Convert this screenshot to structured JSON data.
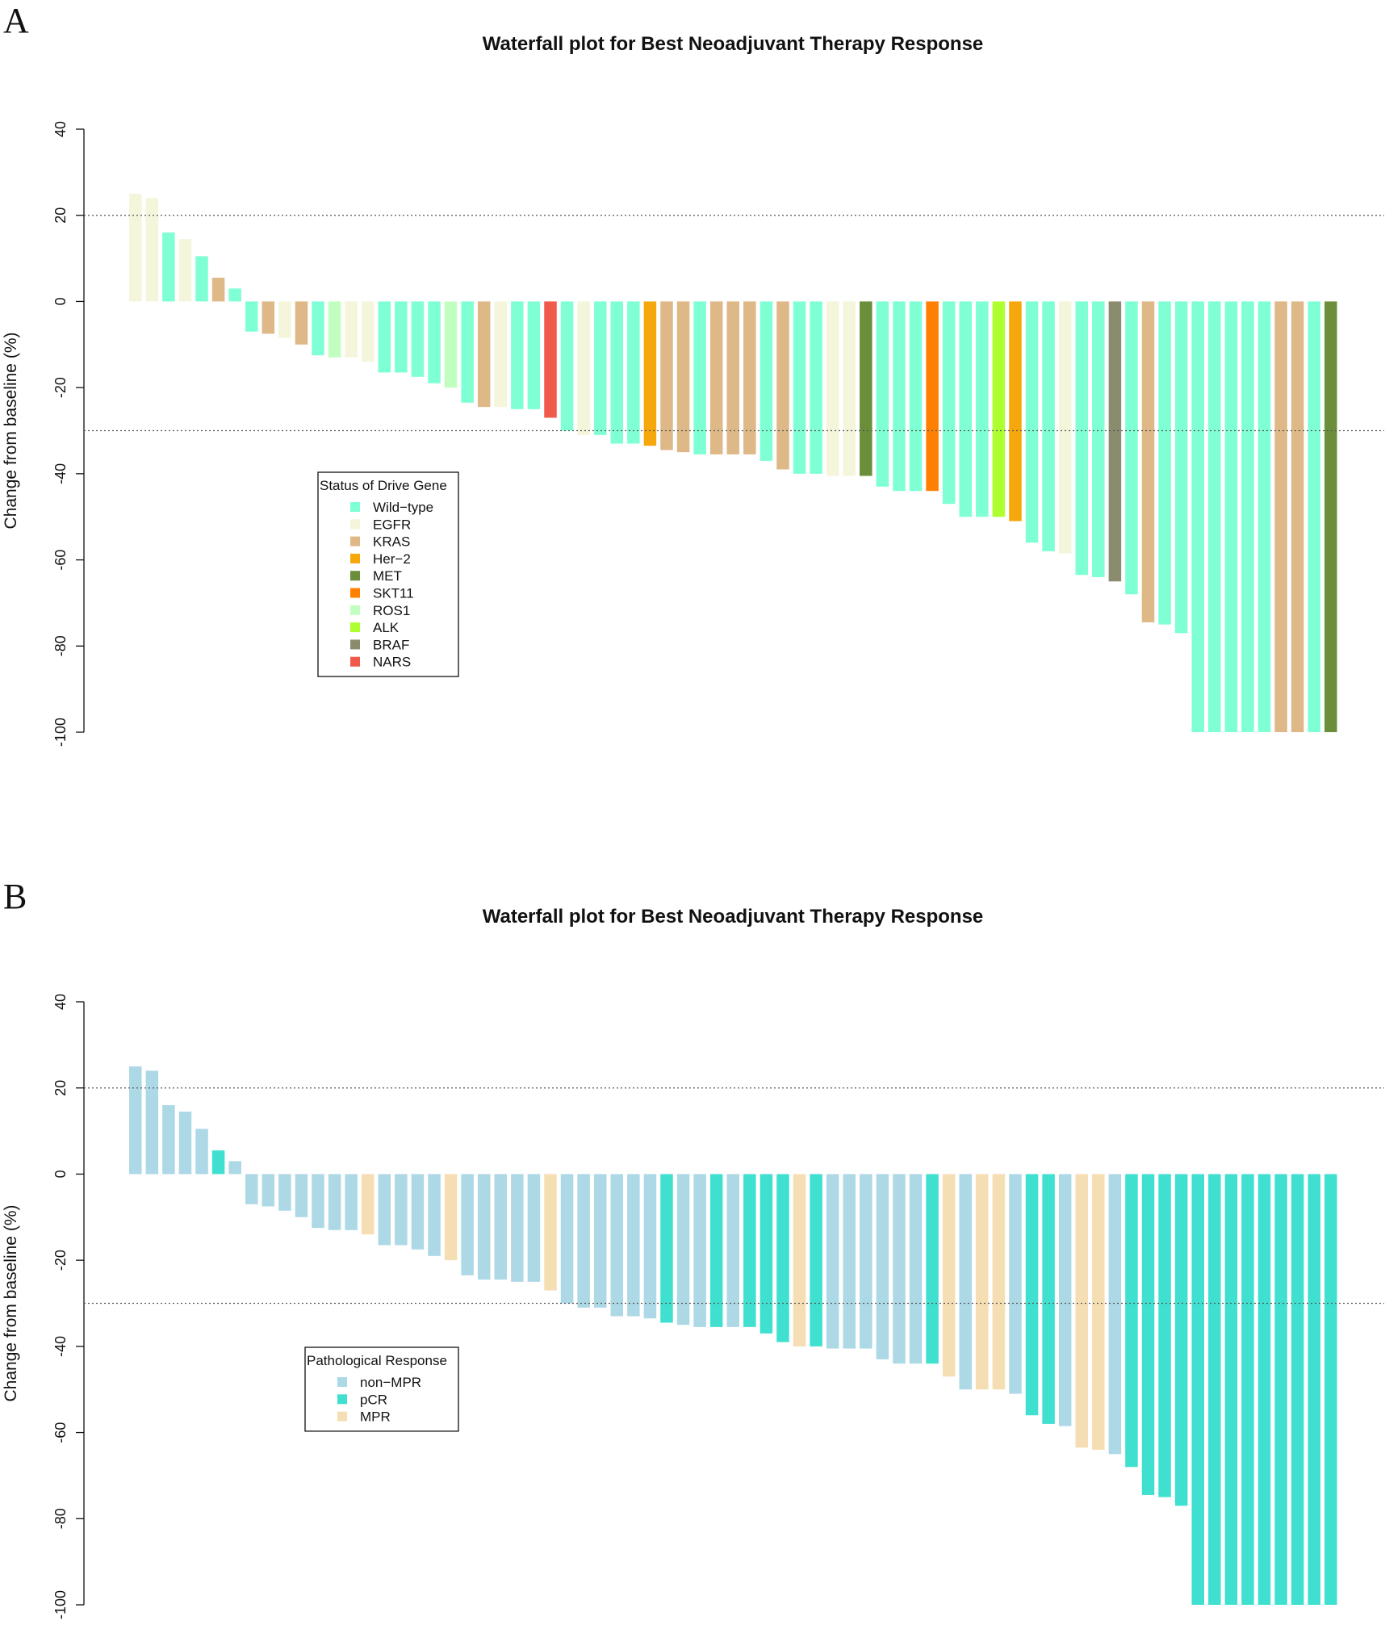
{
  "chart_data": [
    {
      "panel_label": "A",
      "type": "bar",
      "title": "Waterfall plot for Best Neoadjuvant Therapy Response",
      "ylabel": "Change from baseline (%)",
      "xlabel": "",
      "ylim": [
        -100,
        40
      ],
      "yticks": [
        "40",
        "20",
        "0",
        "-20",
        "-40",
        "-60",
        "-80",
        "-100"
      ],
      "yticks_values": [
        40,
        20,
        0,
        -20,
        -40,
        -60,
        -80,
        -100
      ],
      "reference_lines": [
        20,
        -30
      ],
      "legend": {
        "title": "Status of Drive Gene",
        "placement": "center-left",
        "entries": [
          {
            "label": "Wild−type",
            "color": "#7fffd4"
          },
          {
            "label": "EGFR",
            "color": "#f5f5dc"
          },
          {
            "label": "KRAS",
            "color": "#deb887"
          },
          {
            "label": "Her−2",
            "color": "#f5a70c"
          },
          {
            "label": "MET",
            "color": "#6b8e3a"
          },
          {
            "label": "SKT11",
            "color": "#ff7f00"
          },
          {
            "label": "ROS1",
            "color": "#c1ffc1"
          },
          {
            "label": "ALK",
            "color": "#adff2f"
          },
          {
            "label": "BRAF",
            "color": "#8b8b6e"
          },
          {
            "label": "NARS",
            "color": "#f05a4a"
          }
        ]
      },
      "values": [
        25,
        24,
        16,
        14.5,
        10.5,
        5.5,
        3,
        -7,
        -7.5,
        -8.5,
        -10,
        -12.5,
        -13,
        -13,
        -14,
        -16.5,
        -16.5,
        -17.5,
        -19,
        -20,
        -23.5,
        -24.5,
        -24.5,
        -25,
        -25,
        -27,
        -30,
        -31,
        -31,
        -33,
        -33,
        -33.5,
        -34.5,
        -35,
        -35.5,
        -35.5,
        -35.5,
        -35.5,
        -37,
        -39,
        -40,
        -40,
        -40.5,
        -40.5,
        -40.5,
        -43,
        -44,
        -44,
        -44,
        -47,
        -50,
        -50,
        -50,
        -51,
        -56,
        -58,
        -58.5,
        -63.5,
        -64,
        -65,
        -68,
        -74.5,
        -75,
        -77,
        -100,
        -100,
        -100,
        -100,
        -100,
        -100,
        -100,
        -100,
        -100
      ],
      "groups": [
        "EGFR",
        "EGFR",
        "Wild−type",
        "EGFR",
        "Wild−type",
        "KRAS",
        "Wild−type",
        "Wild−type",
        "KRAS",
        "EGFR",
        "KRAS",
        "Wild−type",
        "ROS1",
        "EGFR",
        "EGFR",
        "Wild−type",
        "Wild−type",
        "Wild−type",
        "Wild−type",
        "ROS1",
        "Wild−type",
        "KRAS",
        "EGFR",
        "Wild−type",
        "Wild−type",
        "NARS",
        "Wild−type",
        "EGFR",
        "Wild−type",
        "Wild−type",
        "Wild−type",
        "Her−2",
        "KRAS",
        "KRAS",
        "Wild−type",
        "KRAS",
        "KRAS",
        "KRAS",
        "Wild−type",
        "KRAS",
        "Wild−type",
        "Wild−type",
        "EGFR",
        "EGFR",
        "MET",
        "Wild−type",
        "Wild−type",
        "Wild−type",
        "SKT11",
        "Wild−type",
        "Wild−type",
        "Wild−type",
        "ALK",
        "Her−2",
        "Wild−type",
        "Wild−type",
        "EGFR",
        "Wild−type",
        "Wild−type",
        "BRAF",
        "Wild−type",
        "KRAS",
        "Wild−type",
        "Wild−type",
        "Wild−type",
        "Wild−type",
        "Wild−type",
        "Wild−type",
        "Wild−type",
        "KRAS",
        "KRAS",
        "Wild−type",
        "MET"
      ]
    },
    {
      "panel_label": "B",
      "type": "bar",
      "title": "Waterfall plot for Best Neoadjuvant Therapy Response",
      "ylabel": "Change from baseline (%)",
      "xlabel": "",
      "ylim": [
        -100,
        40
      ],
      "yticks": [
        "40",
        "20",
        "0",
        "-20",
        "-40",
        "-60",
        "-80",
        "-100"
      ],
      "yticks_values": [
        40,
        20,
        0,
        -20,
        -40,
        -60,
        -80,
        -100
      ],
      "reference_lines": [
        20,
        -30
      ],
      "legend": {
        "title": "Pathological Response",
        "placement": "center-left",
        "entries": [
          {
            "label": "non−MPR",
            "color": "#add8e6"
          },
          {
            "label": "pCR",
            "color": "#40e0d0"
          },
          {
            "label": "MPR",
            "color": "#f5deb3"
          }
        ]
      },
      "values": [
        25,
        24,
        16,
        14.5,
        10.5,
        5.5,
        3,
        -7,
        -7.5,
        -8.5,
        -10,
        -12.5,
        -13,
        -13,
        -14,
        -16.5,
        -16.5,
        -17.5,
        -19,
        -20,
        -23.5,
        -24.5,
        -24.5,
        -25,
        -25,
        -27,
        -30,
        -31,
        -31,
        -33,
        -33,
        -33.5,
        -34.5,
        -35,
        -35.5,
        -35.5,
        -35.5,
        -35.5,
        -37,
        -39,
        -40,
        -40,
        -40.5,
        -40.5,
        -40.5,
        -43,
        -44,
        -44,
        -44,
        -47,
        -50,
        -50,
        -50,
        -51,
        -56,
        -58,
        -58.5,
        -63.5,
        -64,
        -65,
        -68,
        -74.5,
        -75,
        -77,
        -100,
        -100,
        -100,
        -100,
        -100,
        -100,
        -100,
        -100,
        -100
      ],
      "groups": [
        "non−MPR",
        "non−MPR",
        "non−MPR",
        "non−MPR",
        "non−MPR",
        "pCR",
        "non−MPR",
        "non−MPR",
        "non−MPR",
        "non−MPR",
        "non−MPR",
        "non−MPR",
        "non−MPR",
        "non−MPR",
        "MPR",
        "non−MPR",
        "non−MPR",
        "non−MPR",
        "non−MPR",
        "MPR",
        "non−MPR",
        "non−MPR",
        "non−MPR",
        "non−MPR",
        "non−MPR",
        "MPR",
        "non−MPR",
        "non−MPR",
        "non−MPR",
        "non−MPR",
        "non−MPR",
        "non−MPR",
        "pCR",
        "non−MPR",
        "non−MPR",
        "pCR",
        "non−MPR",
        "pCR",
        "pCR",
        "pCR",
        "MPR",
        "pCR",
        "non−MPR",
        "non−MPR",
        "non−MPR",
        "non−MPR",
        "non−MPR",
        "non−MPR",
        "pCR",
        "MPR",
        "non−MPR",
        "MPR",
        "MPR",
        "non−MPR",
        "pCR",
        "pCR",
        "non−MPR",
        "MPR",
        "MPR",
        "non−MPR",
        "pCR",
        "pCR",
        "pCR",
        "pCR",
        "pCR",
        "pCR",
        "pCR",
        "pCR",
        "pCR",
        "pCR",
        "pCR",
        "pCR",
        "pCR"
      ]
    }
  ]
}
